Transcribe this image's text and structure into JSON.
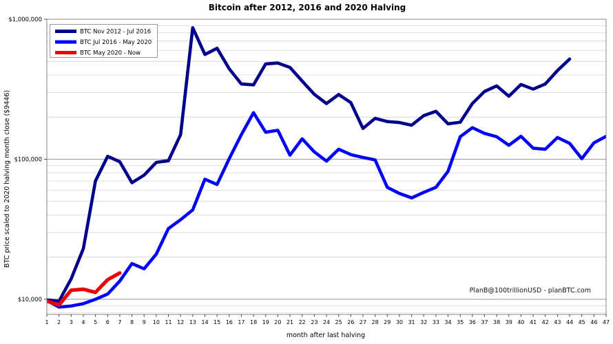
{
  "title": "Bitcoin after 2012, 2016 and 2020 Halving",
  "watermark": "PlanB@100trillionUSD  -  planBTC.com",
  "colors": {
    "series_2012": "#00008b",
    "series_2016": "#0000ff",
    "series_2020": "#ee0000",
    "grid_minor": "#d8d8d8",
    "grid_major": "#a6a6a6",
    "frame": "#808080",
    "background": "#ffffff"
  },
  "chart_data": {
    "type": "line",
    "title": "Bitcoin after 2012, 2016 and 2020 Halving",
    "xlabel": "month after last halving",
    "ylabel": "BTC price scaled to 2020 halving month close ($9446)",
    "y_scale": "log",
    "ylim": [
      7790,
      1000000
    ],
    "xlim": [
      1,
      47
    ],
    "grid": true,
    "legend_position": "upper-left",
    "x_ticks": [
      1,
      2,
      3,
      4,
      5,
      6,
      7,
      8,
      9,
      10,
      11,
      12,
      13,
      14,
      15,
      16,
      17,
      18,
      19,
      20,
      21,
      22,
      23,
      24,
      25,
      26,
      27,
      28,
      29,
      30,
      31,
      32,
      33,
      34,
      35,
      36,
      37,
      38,
      39,
      40,
      41,
      42,
      43,
      44,
      45,
      46,
      47
    ],
    "y_major_ticks": [
      {
        "value": 10000,
        "label": "$10,000"
      },
      {
        "value": 100000,
        "label": "$100,000"
      },
      {
        "value": 1000000,
        "label": "$1,000,000"
      }
    ],
    "y_minor_gridlines": [
      8000,
      9000,
      20000,
      30000,
      40000,
      50000,
      60000,
      70000,
      80000,
      90000,
      200000,
      300000,
      400000,
      500000,
      600000,
      700000,
      800000,
      900000
    ],
    "series": [
      {
        "name": "BTC Nov 2012 - Jul 2016",
        "color": "#00008b",
        "start_month": 1,
        "values": [
          9900,
          9700,
          14000,
          23000,
          70000,
          105000,
          96000,
          68000,
          77000,
          95000,
          97500,
          150000,
          870000,
          560000,
          620000,
          443000,
          345000,
          340000,
          480000,
          487000,
          453000,
          362000,
          291000,
          250000,
          290000,
          254000,
          166000,
          196000,
          186000,
          183000,
          175000,
          205000,
          220000,
          179000,
          184000,
          250000,
          305000,
          334000,
          282000,
          342000,
          317000,
          345000,
          430000,
          520000
        ]
      },
      {
        "name": "BTC Jul 2016 - May 2020",
        "color": "#0000ff",
        "start_month": 1,
        "values": [
          9800,
          8800,
          8950,
          9300,
          10000,
          10900,
          13500,
          18000,
          16500,
          21000,
          32000,
          37000,
          43500,
          72000,
          66000,
          101000,
          150000,
          215000,
          156000,
          161000,
          107000,
          140000,
          113000,
          97000,
          118000,
          108000,
          103000,
          99000,
          63000,
          57000,
          53000,
          58000,
          63000,
          82000,
          145000,
          168000,
          153000,
          145000,
          126000,
          146000,
          120000,
          118000,
          143000,
          130000,
          101000,
          131000,
          146000
        ]
      },
      {
        "name": "BTC May 2020 - Now",
        "color": "#ee0000",
        "start_month": 1,
        "values": [
          9700,
          9100,
          11600,
          11800,
          11200,
          13800,
          15400
        ]
      }
    ]
  }
}
